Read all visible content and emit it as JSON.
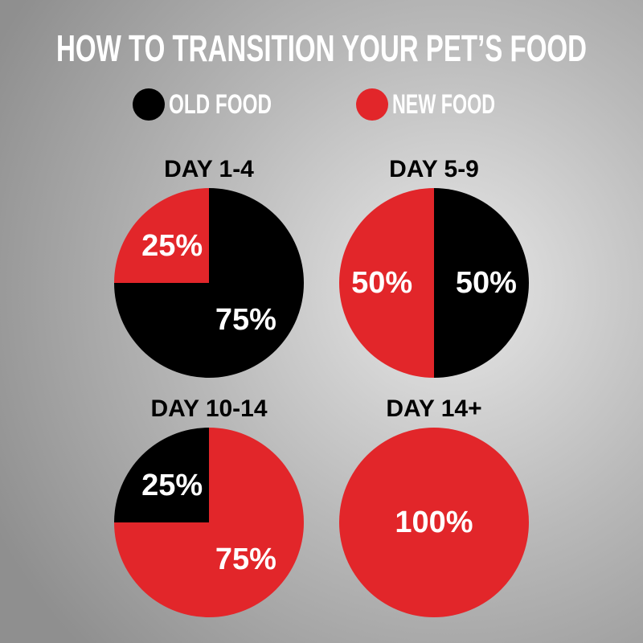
{
  "title": "HOW TO TRANSITION YOUR PET’S FOOD",
  "legend": [
    {
      "name": "OLD FOOD",
      "color": "#000000"
    },
    {
      "name": "NEW FOOD",
      "color": "#e2262a"
    }
  ],
  "chart_data": [
    {
      "type": "pie",
      "title": "DAY 1-4",
      "values": [
        75,
        25
      ],
      "value_labels": [
        "75%",
        "25%"
      ]
    },
    {
      "type": "pie",
      "title": "DAY 5-9",
      "values": [
        50,
        50
      ],
      "value_labels": [
        "50%",
        "50%"
      ]
    },
    {
      "type": "pie",
      "title": "DAY 10-14",
      "values": [
        25,
        75
      ],
      "value_labels": [
        "25%",
        "75%"
      ]
    },
    {
      "type": "pie",
      "title": "DAY 14+",
      "values": [
        0,
        100
      ],
      "value_labels": [
        null,
        "100%"
      ]
    }
  ]
}
